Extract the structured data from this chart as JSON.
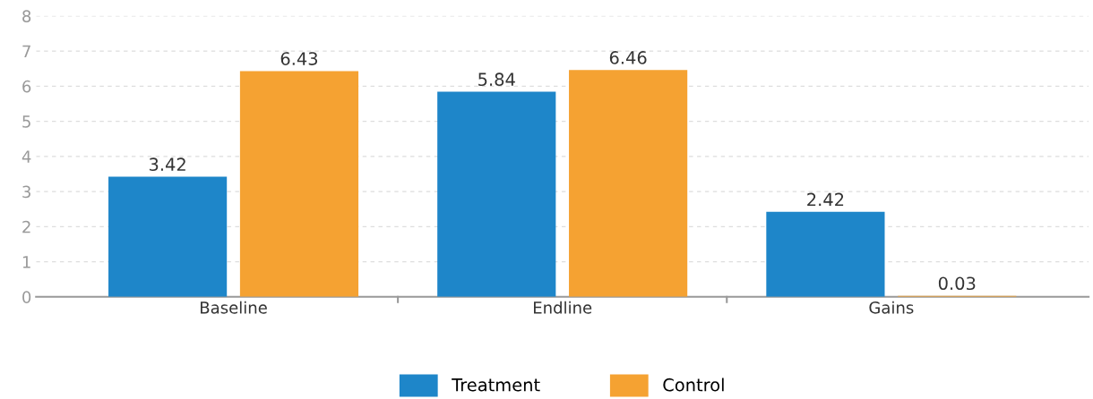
{
  "chart_data": {
    "type": "bar",
    "categories": [
      "Baseline",
      "Endline",
      "Gains"
    ],
    "series": [
      {
        "name": "Treatment",
        "color": "#1e86c9",
        "values": [
          3.42,
          5.84,
          2.42
        ]
      },
      {
        "name": "Control",
        "color": "#f5a232",
        "values": [
          6.43,
          6.46,
          0.03
        ]
      }
    ],
    "ylim": [
      0,
      8
    ],
    "yticks": [
      0,
      1,
      2,
      3,
      4,
      5,
      6,
      7,
      8
    ],
    "grid": "y",
    "legend": "bottom",
    "data_labels": true
  }
}
